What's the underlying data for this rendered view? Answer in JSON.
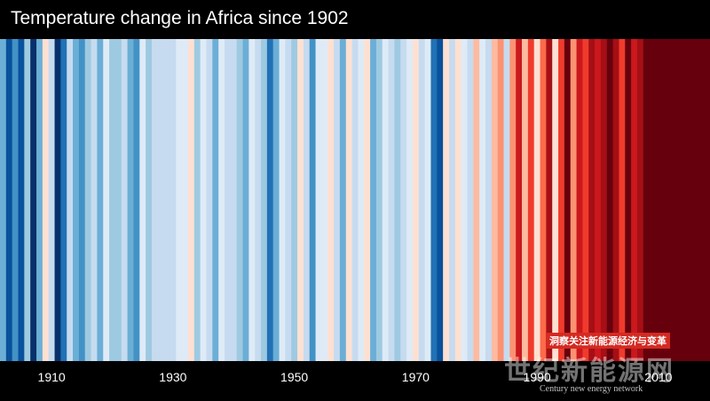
{
  "chart_data": {
    "type": "heatmap",
    "title": "Temperature change in Africa since 1902",
    "x_start": 1902,
    "x_end": 2018,
    "tick_labels": [
      "1910",
      "1930",
      "1950",
      "1970",
      "1990",
      "2010"
    ],
    "tick_years": [
      1910,
      1930,
      1950,
      1970,
      1990,
      2010
    ],
    "color_scale": [
      "#08306b",
      "#08519c",
      "#2171b5",
      "#4292c6",
      "#6baed6",
      "#9ecae1",
      "#c6dbef",
      "#deebf7",
      "#fee0d2",
      "#fcbba1",
      "#fc9272",
      "#fb6a4a",
      "#ef3b2c",
      "#cb181d",
      "#a50f15",
      "#67000d"
    ],
    "levels": [
      4,
      1,
      3,
      1,
      5,
      0,
      4,
      8,
      6,
      0,
      2,
      6,
      4,
      3,
      5,
      6,
      4,
      7,
      5,
      5,
      6,
      4,
      3,
      7,
      5,
      6,
      6,
      6,
      6,
      7,
      7,
      8,
      5,
      7,
      6,
      4,
      7,
      6,
      6,
      5,
      4,
      7,
      6,
      5,
      2,
      4,
      7,
      6,
      5,
      8,
      6,
      3,
      7,
      7,
      8,
      6,
      4,
      8,
      6,
      7,
      8,
      4,
      5,
      7,
      6,
      5,
      6,
      7,
      8,
      6,
      7,
      2,
      1,
      8,
      6,
      8,
      7,
      6,
      9,
      7,
      6,
      9,
      10,
      6,
      10,
      13,
      9,
      12,
      8,
      11,
      14,
      8,
      12,
      15,
      10,
      13,
      12,
      14,
      13,
      14,
      15,
      14,
      12,
      15,
      13,
      14,
      15,
      15,
      15,
      15,
      15,
      15,
      15,
      15,
      15,
      15,
      15
    ]
  },
  "watermark": {
    "tag": "洞察关注新能源经济与变革",
    "logo": "世纪新能源网",
    "subtitle": "Century new energy network"
  }
}
